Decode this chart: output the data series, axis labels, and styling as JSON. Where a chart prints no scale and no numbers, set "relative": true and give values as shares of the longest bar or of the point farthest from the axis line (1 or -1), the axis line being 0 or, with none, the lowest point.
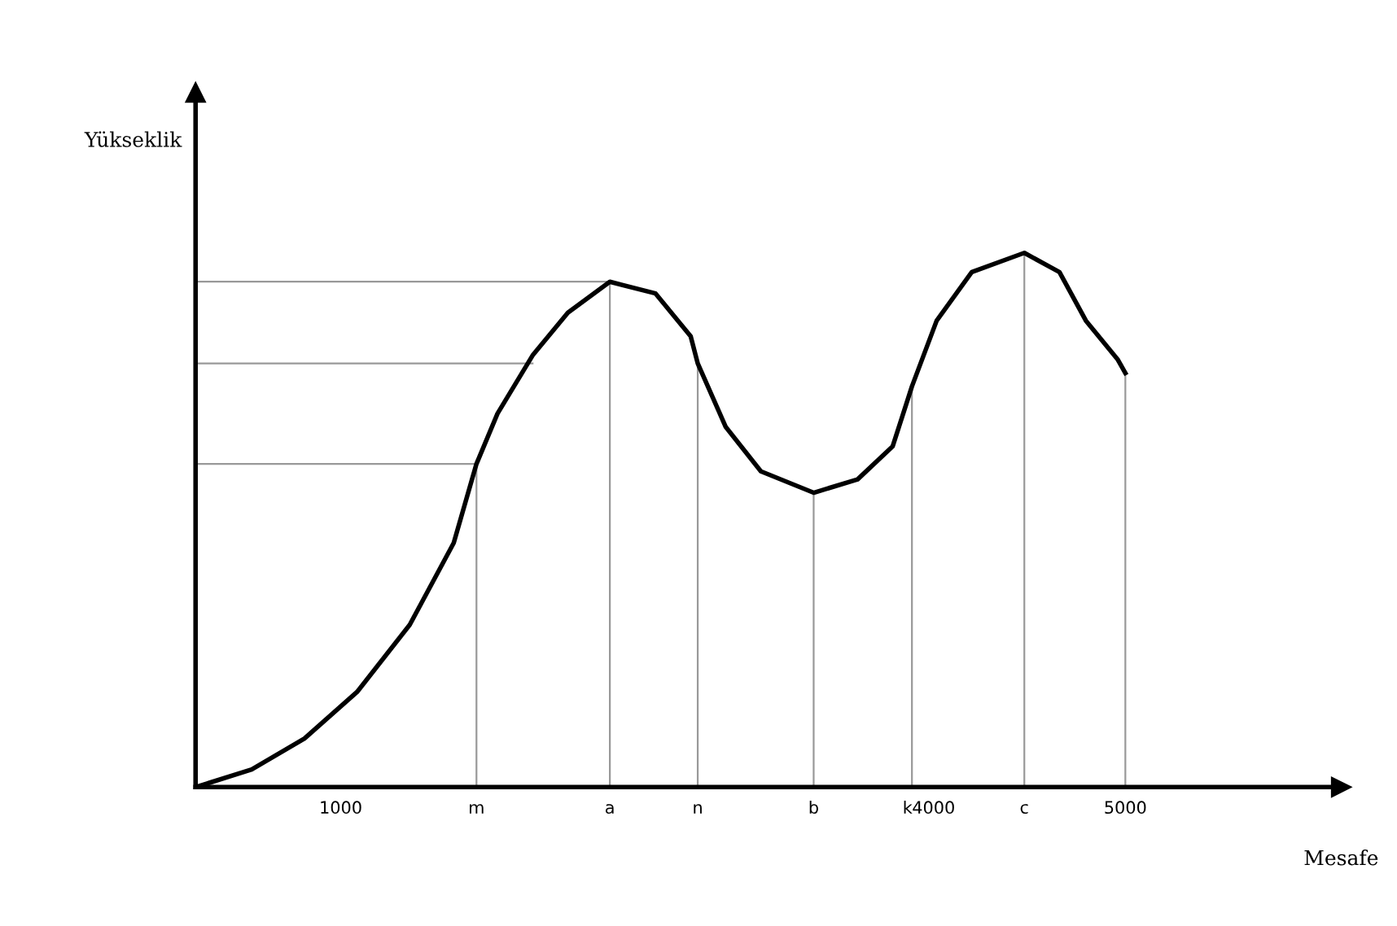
{
  "chart_data": {
    "type": "line",
    "relative": true,
    "xlabel": "Mesafe",
    "annotations": [
      "Yükseklik"
    ],
    "x": [
      260,
      546,
      815,
      1083,
      1352,
      1576,
      1692,
      1799,
      1978,
      2158,
      2372,
      2605,
      2784,
      2820,
      2963,
      3142,
      3411,
      3635,
      3814,
      3912,
      4038,
      4217,
      4485,
      4664,
      4799,
      4960,
      5000
    ],
    "series": [
      {
        "color": "#000000",
        "values": [
          0,
          0.033,
          0.091,
          0.178,
          0.304,
          0.457,
          0.605,
          0.699,
          0.808,
          0.888,
          0.946,
          0.924,
          0.844,
          0.793,
          0.674,
          0.591,
          0.551,
          0.576,
          0.638,
          0.75,
          0.873,
          0.964,
          1,
          0.964,
          0.873,
          0.801,
          0.775
        ]
      }
    ],
    "xlim": [
      260,
      6100
    ],
    "xticks": [
      1000,
      {
        "value": 1692,
        "label": "m"
      },
      {
        "value": 2372,
        "label": "a"
      },
      {
        "value": 2820,
        "label": "n"
      },
      {
        "value": 3411,
        "label": "b"
      },
      {
        "value": 3912,
        "label": "k"
      },
      4000,
      {
        "value": 4485,
        "label": "c"
      },
      5000
    ],
    "ref_lines": [
      {
        "axis": "y",
        "value": 0.946,
        "color": "#999999"
      },
      {
        "axis": "y",
        "value": 0.793,
        "color": "#999999"
      },
      {
        "axis": "y",
        "value": 0.605,
        "color": "#999999"
      },
      {
        "axis": "x",
        "value": 1692,
        "color": "#999999"
      },
      {
        "axis": "x",
        "value": 2372,
        "color": "#999999"
      },
      {
        "axis": "x",
        "value": 2820,
        "color": "#999999"
      },
      {
        "axis": "x",
        "value": 3411,
        "color": "#999999"
      },
      {
        "axis": "x",
        "value": 3912,
        "color": "#999999"
      },
      {
        "axis": "x",
        "value": 4485,
        "color": "#999999"
      },
      {
        "axis": "x",
        "value": 5000,
        "color": "#999999"
      }
    ],
    "grid": false,
    "legend": false,
    "marker": "none",
    "line_style": "solid"
  }
}
